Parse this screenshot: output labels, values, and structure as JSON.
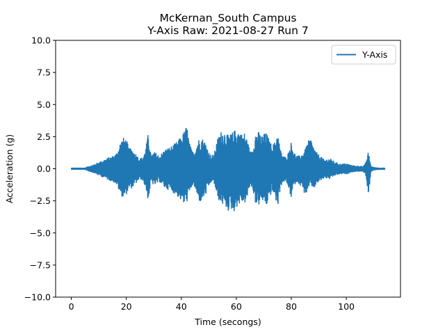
{
  "chart_data": {
    "type": "line",
    "title": [
      "McKernan_South Campus",
      "Y-Axis Raw: 2021-08-27 Run 7"
    ],
    "xlabel": "Time (secongs)",
    "ylabel": "Acceleration (g)",
    "xlim": [
      -5.7,
      119.7
    ],
    "ylim": [
      -10.0,
      10.0
    ],
    "xticks": [
      0,
      20,
      40,
      60,
      80,
      100
    ],
    "xtick_labels": [
      "0",
      "20",
      "40",
      "60",
      "80",
      "100"
    ],
    "yticks": [
      10.0,
      7.5,
      5.0,
      2.5,
      0.0,
      -2.5,
      -5.0,
      -7.5,
      -10.0
    ],
    "ytick_labels": [
      "10.0",
      "7.5",
      "5.0",
      "2.5",
      "0.0",
      "−2.5",
      "−5.0",
      "−7.5",
      "−10.0"
    ],
    "grid": false,
    "legend_position": "top-right",
    "color": "#1f77b4",
    "series": [
      {
        "name": "Y-Axis",
        "x_range": [
          0,
          114
        ],
        "envelope": {
          "t": [
            0,
            5,
            6,
            8,
            10,
            12,
            14,
            16,
            17,
            18,
            19,
            20,
            21,
            22,
            23,
            24,
            25,
            26,
            27,
            28,
            29,
            30,
            31,
            32,
            34,
            36,
            38,
            40,
            41,
            42,
            43,
            44,
            45,
            46,
            47,
            48,
            49,
            50,
            51,
            52,
            53,
            54,
            55,
            56,
            57,
            58,
            59,
            60,
            61,
            62,
            63,
            64,
            65,
            66,
            67,
            68,
            69,
            70,
            71,
            72,
            73,
            74,
            75,
            76,
            77,
            78,
            79,
            80,
            81,
            82,
            83,
            84,
            85,
            86,
            87,
            88,
            89,
            90,
            91,
            92,
            94,
            96,
            98,
            100,
            102,
            104,
            106,
            107,
            108,
            109,
            110,
            112,
            114
          ],
          "upper": [
            0.05,
            0.05,
            0.15,
            0.3,
            0.5,
            0.7,
            0.9,
            1.1,
            1.5,
            2.2,
            2.4,
            2.3,
            1.6,
            1.5,
            1.3,
            1.0,
            0.8,
            0.9,
            1.5,
            2.8,
            1.0,
            1.3,
            1.2,
            1.0,
            1.5,
            1.7,
            2.0,
            2.5,
            2.9,
            3.4,
            2.0,
            1.3,
            1.5,
            2.2,
            2.5,
            2.3,
            2.0,
            1.3,
            1.0,
            1.2,
            2.2,
            2.8,
            3.0,
            2.9,
            2.6,
            2.7,
            2.9,
            3.1,
            3.0,
            2.7,
            2.8,
            2.3,
            1.3,
            1.6,
            2.8,
            2.9,
            2.6,
            2.7,
            2.8,
            2.2,
            1.8,
            2.1,
            2.9,
            1.5,
            1.0,
            0.9,
            1.3,
            2.1,
            1.3,
            1.0,
            1.0,
            1.2,
            1.5,
            2.1,
            2.4,
            1.8,
            1.3,
            1.1,
            0.9,
            0.7,
            0.8,
            0.5,
            0.35,
            0.4,
            0.25,
            0.2,
            0.2,
            0.4,
            1.3,
            0.2,
            0.1,
            0.05,
            0.05
          ],
          "lower": [
            -0.05,
            -0.05,
            -0.15,
            -0.3,
            -0.5,
            -0.7,
            -0.9,
            -1.1,
            -1.5,
            -2.1,
            -2.2,
            -2.0,
            -1.6,
            -1.5,
            -1.3,
            -1.0,
            -0.8,
            -0.9,
            -1.5,
            -2.5,
            -1.0,
            -1.3,
            -1.2,
            -1.0,
            -1.5,
            -1.7,
            -2.0,
            -2.5,
            -2.8,
            -2.6,
            -2.0,
            -1.3,
            -1.5,
            -2.4,
            -2.6,
            -2.3,
            -2.0,
            -1.4,
            -1.0,
            -1.2,
            -2.2,
            -2.6,
            -2.8,
            -3.0,
            -3.3,
            -3.1,
            -3.4,
            -3.0,
            -2.8,
            -2.6,
            -2.7,
            -2.3,
            -1.3,
            -1.6,
            -2.7,
            -2.9,
            -2.5,
            -2.6,
            -2.9,
            -2.3,
            -1.8,
            -2.1,
            -3.1,
            -1.5,
            -1.0,
            -1.0,
            -1.5,
            -2.3,
            -1.3,
            -1.0,
            -1.2,
            -1.6,
            -2.0,
            -1.8,
            -1.2,
            -1.6,
            -1.3,
            -1.0,
            -0.9,
            -0.7,
            -0.8,
            -0.5,
            -0.4,
            -0.4,
            -0.25,
            -0.2,
            -0.2,
            -0.4,
            -2.2,
            -0.2,
            -0.1,
            -0.05,
            -0.05
          ]
        }
      }
    ]
  }
}
